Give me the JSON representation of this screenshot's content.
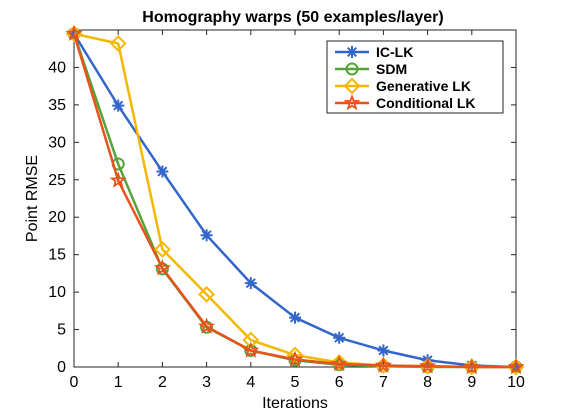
{
  "chart_data": {
    "type": "line",
    "title": "Homography warps (50 examples/layer)",
    "xlabel": "Iterations",
    "ylabel": "Point RMSE",
    "x": [
      0,
      1,
      2,
      3,
      4,
      5,
      6,
      7,
      8,
      9,
      10
    ],
    "xlim": [
      0,
      10
    ],
    "ylim": [
      0,
      45
    ],
    "xticks": [
      "0",
      "1",
      "2",
      "3",
      "4",
      "5",
      "6",
      "7",
      "8",
      "9",
      "10"
    ],
    "yticks": [
      "0",
      "5",
      "10",
      "15",
      "20",
      "25",
      "30",
      "35",
      "40"
    ],
    "ytick_values": [
      0,
      5,
      10,
      15,
      20,
      25,
      30,
      35,
      40
    ],
    "grid": false,
    "legend_position": "top-right",
    "series": [
      {
        "name": "IC-LK",
        "color": "#3366cc",
        "marker": "asterisk",
        "values": [
          44.5,
          34.9,
          26.1,
          17.6,
          11.2,
          6.6,
          3.9,
          2.2,
          0.9,
          0.2,
          0.0
        ]
      },
      {
        "name": "SDM",
        "color": "#55a33a",
        "marker": "circle",
        "values": [
          44.5,
          27.1,
          13.1,
          5.3,
          2.2,
          0.9,
          0.3,
          0.1,
          0.0,
          0.0,
          0.0
        ]
      },
      {
        "name": "Generative LK",
        "color": "#f5b800",
        "marker": "diamond",
        "values": [
          44.5,
          43.2,
          15.7,
          9.7,
          3.6,
          1.6,
          0.6,
          0.2,
          0.1,
          0.0,
          0.0
        ]
      },
      {
        "name": "Conditional LK",
        "color": "#e8531a",
        "marker": "star",
        "values": [
          44.5,
          24.9,
          13.2,
          5.4,
          2.2,
          1.0,
          0.4,
          0.2,
          0.1,
          0.0,
          0.0
        ]
      }
    ]
  }
}
